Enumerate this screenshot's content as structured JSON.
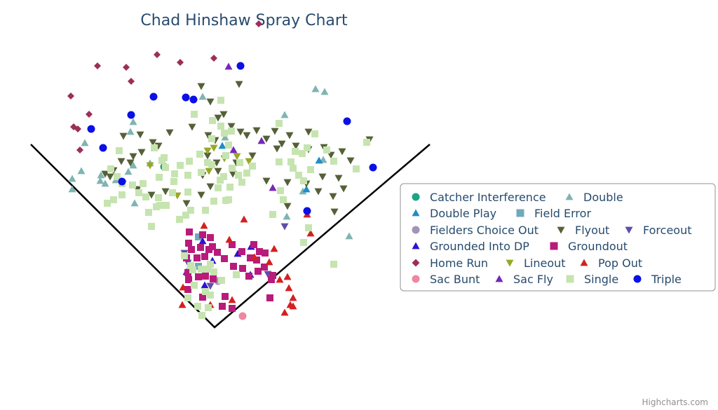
{
  "chart_data": {
    "type": "scatter",
    "title": "Chad Hinshaw Spray Chart",
    "credits": "Highcharts.com",
    "legend_position": "right",
    "grid": false,
    "field": {
      "home": [
        306,
        467
      ],
      "left_foul_end": [
        44,
        206
      ],
      "right_foul_end": [
        613,
        206
      ]
    },
    "series": [
      {
        "name": "Catcher Interference",
        "symbol": "circle",
        "color": "#1aa584",
        "points": [
          [
            234,
            238
          ]
        ]
      },
      {
        "name": "Double",
        "symbol": "triangle",
        "color": "#7fb4b1",
        "points": [
          [
            450,
            127
          ],
          [
            463,
            131
          ],
          [
            289,
            138
          ],
          [
            190,
            174
          ],
          [
            406,
            164
          ],
          [
            186,
            188
          ],
          [
            121,
            204
          ],
          [
            116,
            244
          ],
          [
            103,
            255
          ],
          [
            103,
            270
          ],
          [
            143,
            258
          ],
          [
            150,
            262
          ],
          [
            165,
            257
          ],
          [
            183,
            245
          ],
          [
            190,
            236
          ],
          [
            214,
            233
          ],
          [
            144,
            250
          ],
          [
            192,
            290
          ],
          [
            321,
            196
          ],
          [
            498,
            337
          ],
          [
            461,
            228
          ],
          [
            432,
            273
          ],
          [
            409,
            309
          ]
        ]
      },
      {
        "name": "Double Play",
        "symbol": "triangle",
        "color": "#1d8ec9",
        "points": [
          [
            317,
            208
          ],
          [
            437,
            270
          ],
          [
            455,
            229
          ]
        ]
      },
      {
        "name": "Field Error",
        "symbol": "square",
        "color": "#72a8bb",
        "points": [
          [
            283,
            338
          ],
          [
            283,
            380
          ]
        ]
      },
      {
        "name": "Fielders Choice Out",
        "symbol": "circle",
        "color": "#a393b8",
        "points": [
          [
            311,
            401
          ]
        ]
      },
      {
        "name": "Flyout",
        "symbol": "triangle-down",
        "color": "#556038",
        "points": [
          [
            287,
            123
          ],
          [
            341,
            120
          ],
          [
            300,
            145
          ],
          [
            311,
            168
          ],
          [
            319,
            163
          ],
          [
            274,
            181
          ],
          [
            242,
            189
          ],
          [
            200,
            192
          ],
          [
            176,
            194
          ],
          [
            218,
            203
          ],
          [
            226,
            208
          ],
          [
            202,
            217
          ],
          [
            190,
            223
          ],
          [
            173,
            230
          ],
          [
            186,
            232
          ],
          [
            162,
            243
          ],
          [
            150,
            248
          ],
          [
            157,
            252
          ],
          [
            175,
            262
          ],
          [
            196,
            270
          ],
          [
            216,
            278
          ],
          [
            236,
            273
          ],
          [
            289,
            250
          ],
          [
            300,
            266
          ],
          [
            287,
            278
          ],
          [
            266,
            290
          ],
          [
            311,
            244
          ],
          [
            343,
            188
          ],
          [
            352,
            193
          ],
          [
            366,
            186
          ],
          [
            380,
            198
          ],
          [
            392,
            187
          ],
          [
            402,
            205
          ],
          [
            413,
            193
          ],
          [
            440,
            188
          ],
          [
            422,
            208
          ],
          [
            440,
            213
          ],
          [
            462,
            210
          ],
          [
            472,
            221
          ],
          [
            488,
            216
          ],
          [
            500,
            229
          ],
          [
            527,
            199
          ],
          [
            460,
            252
          ],
          [
            483,
            254
          ],
          [
            490,
            269
          ],
          [
            475,
            280
          ],
          [
            477,
            302
          ],
          [
            454,
            273
          ],
          [
            437,
            262
          ],
          [
            410,
            260
          ],
          [
            410,
            294
          ],
          [
            380,
            258
          ],
          [
            395,
            212
          ],
          [
            360,
            222
          ],
          [
            337,
            232
          ],
          [
            332,
            248
          ],
          [
            309,
            232
          ],
          [
            296,
            222
          ],
          [
            307,
            200
          ],
          [
            330,
            180
          ],
          [
            297,
            193
          ]
        ]
      },
      {
        "name": "Forceout",
        "symbol": "triangle-down",
        "color": "#5c4ea9",
        "points": [
          [
            406,
            323
          ],
          [
            263,
            361
          ],
          [
            268,
            375
          ],
          [
            300,
            408
          ],
          [
            382,
            391
          ]
        ]
      },
      {
        "name": "Grounded Into DP",
        "symbol": "triangle",
        "color": "#2914d1",
        "points": [
          [
            289,
            344
          ],
          [
            339,
            362
          ],
          [
            358,
            352
          ],
          [
            266,
            388
          ],
          [
            303,
            372
          ],
          [
            292,
            407
          ],
          [
            357,
            392
          ]
        ]
      },
      {
        "name": "Groundout",
        "symbol": "square",
        "color": "#b81b7b",
        "points": [
          [
            270,
            331
          ],
          [
            269,
            347
          ],
          [
            273,
            356
          ],
          [
            286,
            353
          ],
          [
            298,
            356
          ],
          [
            292,
            366
          ],
          [
            303,
            352
          ],
          [
            281,
            368
          ],
          [
            266,
            368
          ],
          [
            310,
            360
          ],
          [
            320,
            369
          ],
          [
            331,
            349
          ],
          [
            345,
            359
          ],
          [
            362,
            349
          ],
          [
            370,
            359
          ],
          [
            333,
            380
          ],
          [
            346,
            383
          ],
          [
            355,
            394
          ],
          [
            368,
            387
          ],
          [
            377,
            381
          ],
          [
            389,
            393
          ],
          [
            357,
            368
          ],
          [
            366,
            371
          ],
          [
            269,
            399
          ],
          [
            283,
            395
          ],
          [
            293,
            394
          ],
          [
            304,
            398
          ],
          [
            289,
            424
          ],
          [
            317,
            437
          ],
          [
            331,
            440
          ],
          [
            385,
            425
          ],
          [
            387,
            399
          ],
          [
            378,
            361
          ],
          [
            300,
            339
          ],
          [
            289,
            335
          ],
          [
            268,
            389
          ],
          [
            321,
            423
          ],
          [
            268,
            413
          ]
        ]
      },
      {
        "name": "Home Run",
        "symbol": "diamond",
        "color": "#9c2f59",
        "points": [
          [
            369,
            34
          ],
          [
            224,
            78
          ],
          [
            139,
            94
          ],
          [
            180,
            96
          ],
          [
            257,
            89
          ],
          [
            305,
            83
          ],
          [
            187,
            116
          ],
          [
            101,
            137
          ],
          [
            127,
            163
          ],
          [
            105,
            181
          ],
          [
            111,
            184
          ],
          [
            114,
            214
          ]
        ]
      },
      {
        "name": "Lineout",
        "symbol": "triangle-down",
        "color": "#98a727",
        "points": [
          [
            214,
            236
          ],
          [
            253,
            279
          ],
          [
            296,
            215
          ],
          [
            305,
            211
          ],
          [
            320,
            226
          ],
          [
            338,
            223
          ],
          [
            355,
            230
          ],
          [
            298,
            244
          ]
        ]
      },
      {
        "name": "Pop Out",
        "symbol": "triangle",
        "color": "#d32020",
        "points": [
          [
            291,
            322
          ],
          [
            348,
            313
          ],
          [
            327,
            342
          ],
          [
            391,
            355
          ],
          [
            438,
            306
          ],
          [
            443,
            333
          ],
          [
            399,
            399
          ],
          [
            410,
            395
          ],
          [
            412,
            411
          ],
          [
            418,
            425
          ],
          [
            414,
            435
          ],
          [
            406,
            446
          ],
          [
            418,
            437
          ],
          [
            331,
            428
          ],
          [
            260,
            435
          ],
          [
            261,
            410
          ],
          [
            300,
            435
          ],
          [
            363,
            367
          ],
          [
            384,
            374
          ]
        ]
      },
      {
        "name": "Sac Bunt",
        "symbol": "circle",
        "color": "#ee88a0",
        "points": [
          [
            346,
            451
          ]
        ]
      },
      {
        "name": "Sac Fly",
        "symbol": "triangle",
        "color": "#7628b6",
        "points": [
          [
            326,
            95
          ],
          [
            333,
            214
          ],
          [
            373,
            201
          ],
          [
            389,
            268
          ]
        ]
      },
      {
        "name": "Single",
        "symbol": "square",
        "color": "#c6e4b0",
        "points": [
          [
            315,
            143
          ],
          [
            277,
            163
          ],
          [
            303,
            172
          ],
          [
            315,
            180
          ],
          [
            320,
            190
          ],
          [
            330,
            187
          ],
          [
            302,
            198
          ],
          [
            326,
            207
          ],
          [
            302,
            235
          ],
          [
            322,
            222
          ],
          [
            342,
            232
          ],
          [
            352,
            247
          ],
          [
            340,
            250
          ],
          [
            331,
            240
          ],
          [
            319,
            252
          ],
          [
            314,
            257
          ],
          [
            328,
            267
          ],
          [
            311,
            268
          ],
          [
            326,
            285
          ],
          [
            305,
            287
          ],
          [
            293,
            300
          ],
          [
            272,
            300
          ],
          [
            265,
            307
          ],
          [
            322,
            286
          ],
          [
            268,
            250
          ],
          [
            248,
            259
          ],
          [
            246,
            275
          ],
          [
            226,
            282
          ],
          [
            223,
            295
          ],
          [
            212,
            303
          ],
          [
            216,
            323
          ],
          [
            204,
            262
          ],
          [
            189,
            264
          ],
          [
            174,
            262
          ],
          [
            153,
            290
          ],
          [
            162,
            285
          ],
          [
            198,
            275
          ],
          [
            174,
            278
          ],
          [
            208,
            281
          ],
          [
            227,
            253
          ],
          [
            231,
            229
          ],
          [
            234,
            225
          ],
          [
            220,
            211
          ],
          [
            236,
            239
          ],
          [
            257,
            236
          ],
          [
            249,
            248
          ],
          [
            270,
            230
          ],
          [
            285,
            220
          ],
          [
            296,
            232
          ],
          [
            170,
            215
          ],
          [
            167,
            252
          ],
          [
            158,
            241
          ],
          [
            237,
            293
          ],
          [
            268,
            274
          ],
          [
            398,
            176
          ],
          [
            398,
            231
          ],
          [
            449,
            191
          ],
          [
            466,
            214
          ],
          [
            476,
            230
          ],
          [
            508,
            241
          ],
          [
            523,
            203
          ],
          [
            443,
            242
          ],
          [
            426,
            250
          ],
          [
            433,
            258
          ],
          [
            415,
            231
          ],
          [
            418,
            240
          ],
          [
            421,
            216
          ],
          [
            431,
            219
          ],
          [
            438,
            211
          ],
          [
            400,
            272
          ],
          [
            404,
            285
          ],
          [
            389,
            306
          ],
          [
            440,
            325
          ],
          [
            433,
            346
          ],
          [
            476,
            377
          ],
          [
            345,
            260
          ],
          [
            300,
            377
          ],
          [
            287,
            384
          ],
          [
            272,
            379
          ],
          [
            277,
            407
          ],
          [
            293,
            416
          ],
          [
            300,
            421
          ],
          [
            268,
            425
          ],
          [
            282,
            437
          ],
          [
            297,
            439
          ],
          [
            288,
            450
          ],
          [
            316,
            400
          ],
          [
            337,
            392
          ],
          [
            305,
            388
          ],
          [
            263,
            365
          ],
          [
            275,
            385
          ],
          [
            297,
            384
          ],
          [
            256,
            313
          ],
          [
            228,
            293
          ],
          [
            360,
            237
          ],
          [
            287,
            246
          ]
        ]
      },
      {
        "name": "Triple",
        "symbol": "circle",
        "color": "#0a10e6",
        "points": [
          [
            343,
            94
          ],
          [
            219,
            138
          ],
          [
            265,
            139
          ],
          [
            276,
            142
          ],
          [
            187,
            164
          ],
          [
            130,
            184
          ],
          [
            147,
            211
          ],
          [
            174,
            259
          ],
          [
            495,
            173
          ],
          [
            532,
            239
          ],
          [
            438,
            301
          ]
        ]
      }
    ]
  }
}
